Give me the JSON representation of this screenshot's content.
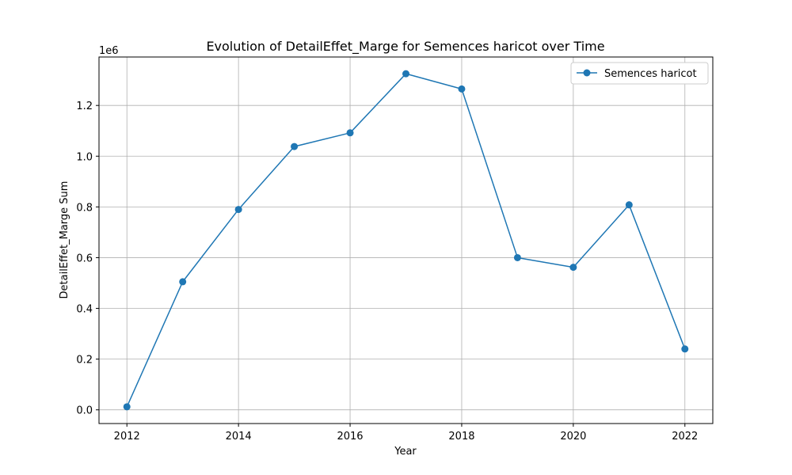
{
  "chart_data": {
    "type": "line",
    "title": "Evolution of DetailEffet_Marge for Semences haricot over Time",
    "xlabel": "Year",
    "ylabel": "DetailEffet_Marge Sum",
    "y_offset_label": "1e6",
    "x": [
      2012,
      2013,
      2014,
      2015,
      2016,
      2017,
      2018,
      2019,
      2020,
      2021,
      2022
    ],
    "series": [
      {
        "name": "Semences haricot",
        "color": "#1f77b4",
        "marker": "circle",
        "values": [
          12000,
          505000,
          790000,
          1038000,
          1092000,
          1325000,
          1265000,
          600000,
          562000,
          808000,
          240000
        ]
      }
    ],
    "xlim": [
      2011.5,
      2022.5
    ],
    "ylim": [
      -54000,
      1391000
    ],
    "xticks": [
      2012,
      2014,
      2016,
      2018,
      2020,
      2022
    ],
    "xtick_labels": [
      "2012",
      "2014",
      "2016",
      "2018",
      "2020",
      "2022"
    ],
    "yticks": [
      0,
      200000,
      400000,
      600000,
      800000,
      1000000,
      1200000
    ],
    "ytick_labels": [
      "0.0",
      "0.2",
      "0.4",
      "0.6",
      "0.8",
      "1.0",
      "1.2"
    ],
    "grid": true,
    "legend_position": "top-right"
  }
}
